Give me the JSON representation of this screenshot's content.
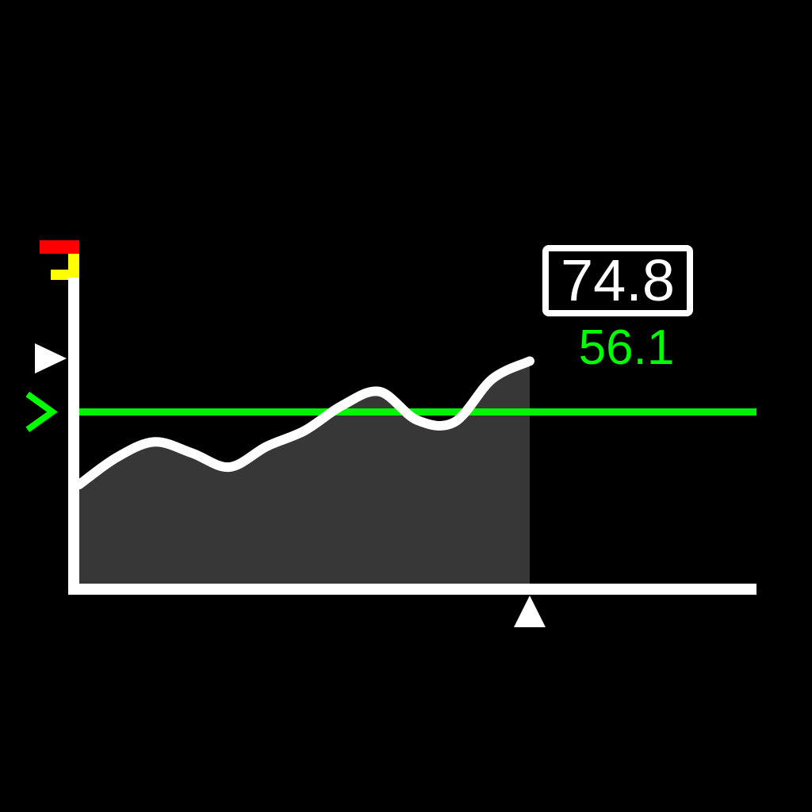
{
  "chart_data": {
    "type": "area",
    "title": "",
    "xlabel": "",
    "ylabel": "",
    "x": [
      0,
      1,
      2,
      3,
      4,
      5,
      6,
      7,
      8,
      9,
      10,
      11,
      12
    ],
    "values": [
      20.5,
      26.1,
      29.3,
      27.0,
      24.1,
      28.4,
      31.6,
      36.8,
      39.7,
      33.8,
      33.4,
      42.3,
      46.0
    ],
    "threshold": 35.5,
    "current_value": "74.8",
    "target_value": "56.1",
    "cursor_x": 12,
    "xlim": [
      0,
      18
    ],
    "ylim": [
      0,
      80
    ],
    "grid": false,
    "legend": "none",
    "colors": {
      "background": "#000000",
      "axis": "#ffffff",
      "line": "#ffffff",
      "fill": "#373737",
      "threshold": "#00ff00",
      "target_text": "#00ff00",
      "alarm_high": "#ff0000",
      "alarm_mid": "#ffff00"
    },
    "icons": {
      "left_marker": "triangle-right-icon",
      "threshold_marker": "chevron-right-icon",
      "cursor_marker": "triangle-up-icon",
      "alarm_flags": "alarm-flag-icon"
    }
  }
}
